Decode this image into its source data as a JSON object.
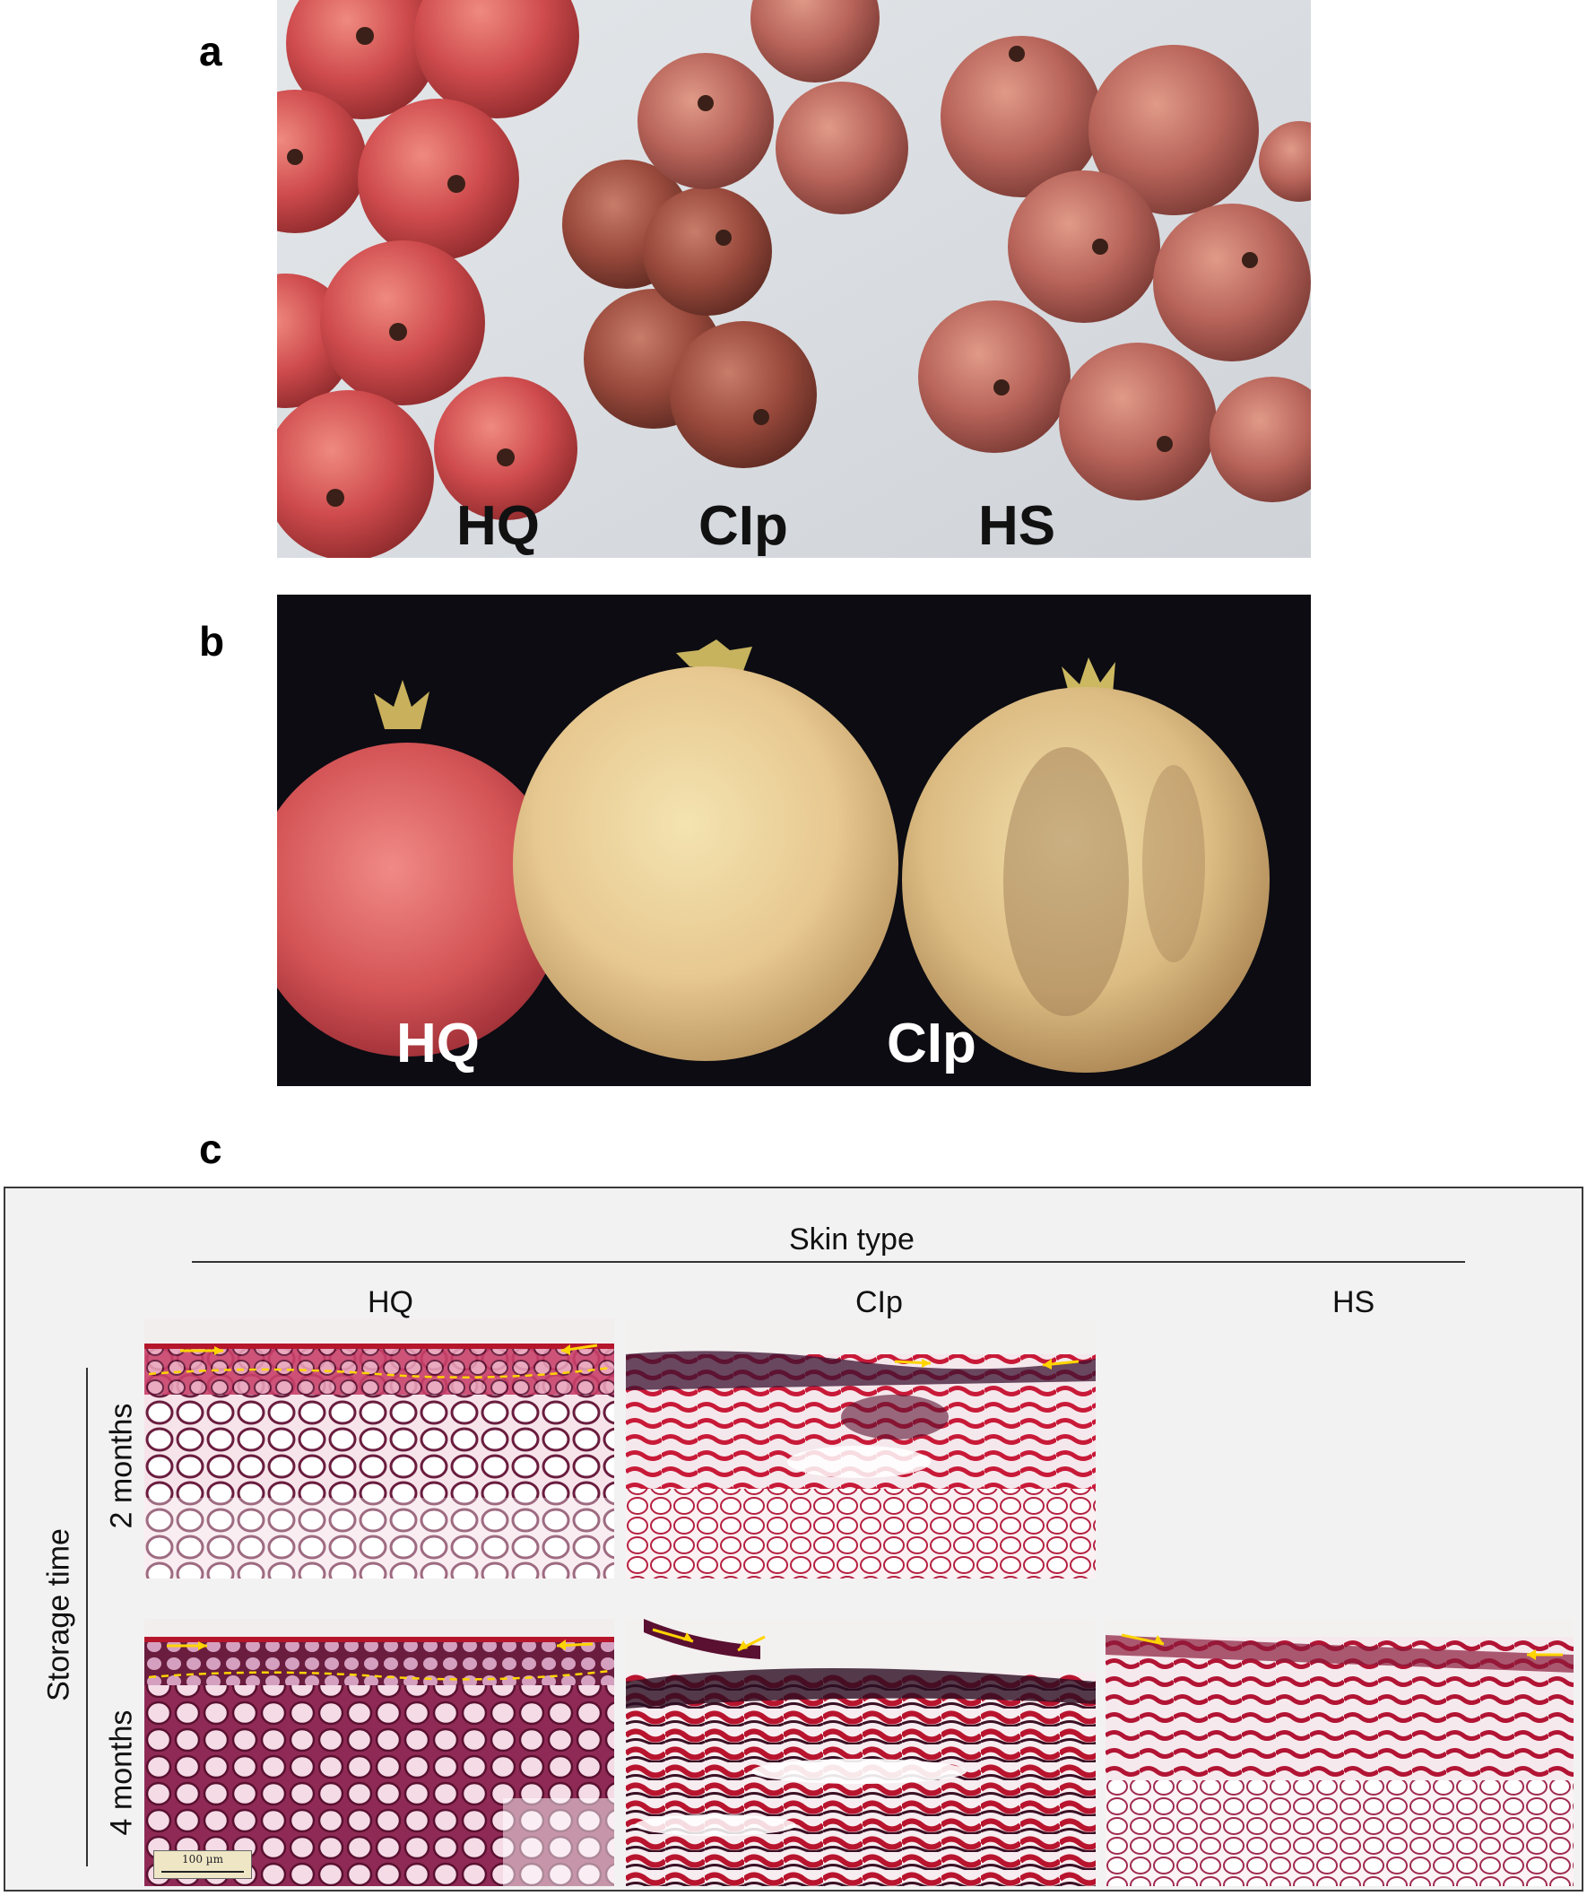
{
  "panel_a": {
    "letter": "a",
    "labels": [
      "HQ",
      "CIp",
      "HS"
    ]
  },
  "panel_b": {
    "letter": "b",
    "labels": [
      "HQ",
      "CIp"
    ]
  },
  "panel_c": {
    "letter": "c",
    "column_header": "Skin type",
    "columns": [
      "HQ",
      "CIp",
      "HS"
    ],
    "row_header": "Storage time",
    "rows": [
      "2 months",
      "4 months"
    ],
    "scale_bar": "100 µm"
  },
  "colors": {
    "fruit_red": "#c8474a",
    "fruit_brown": "#9c4a3e",
    "fruit_yellow": "#e6c98c",
    "stain_red": "#c01530",
    "stain_dark": "#5a1030",
    "annotation_yellow": "#ffd400"
  }
}
